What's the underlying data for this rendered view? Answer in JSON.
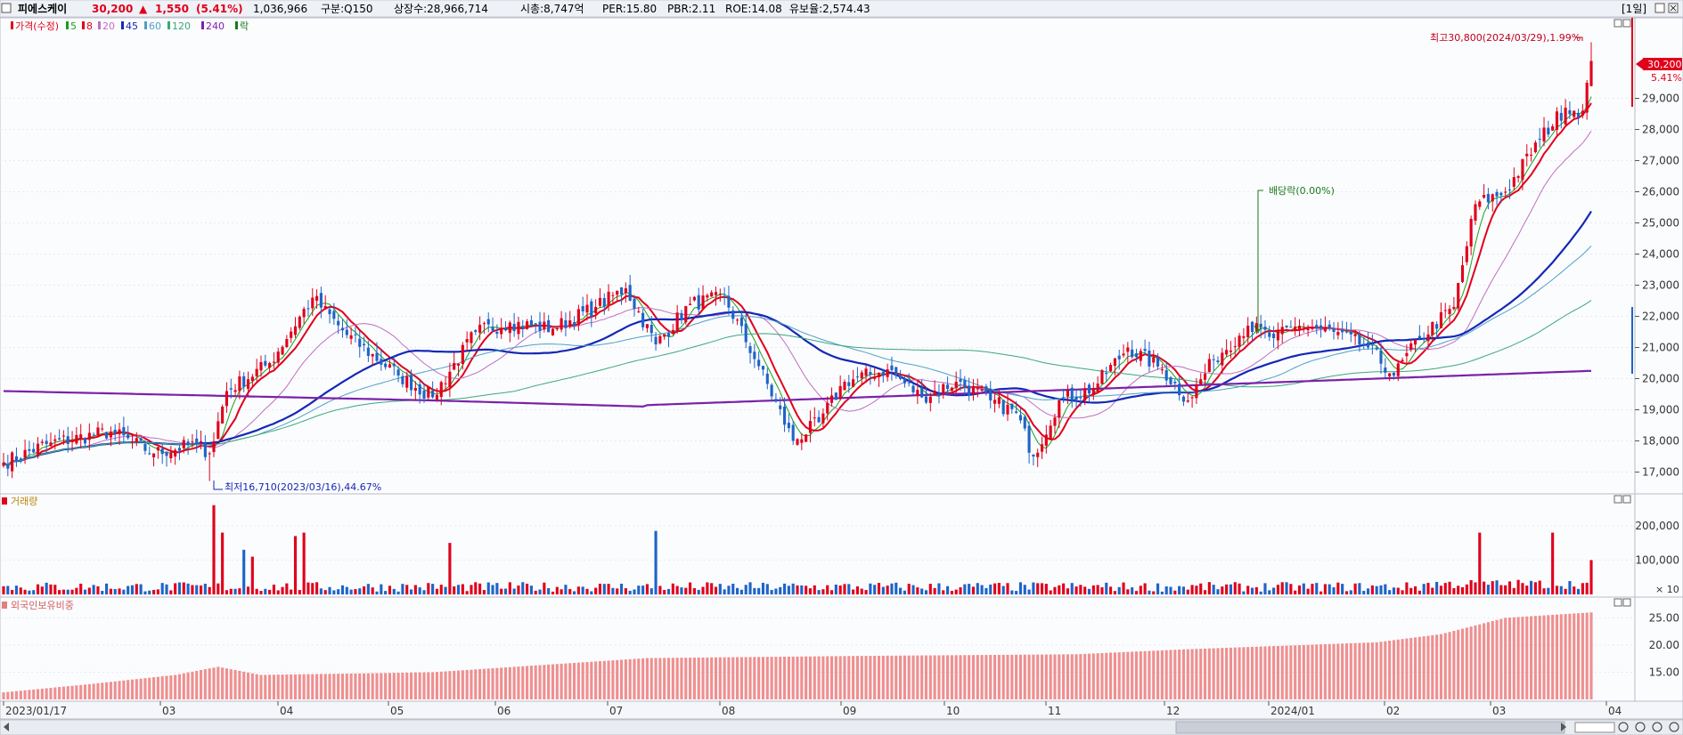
{
  "header": {
    "stock_name": "피에스케이",
    "price": "30,200",
    "change_arrow": "▲",
    "change": "1,550",
    "change_pct": "(5.41%)",
    "volume": "1,036,966",
    "market": "구분:Q150",
    "listed_shares": "상장수:28,966,714",
    "market_cap": "시총:8,747억",
    "per": "PER:15.80",
    "pbr": "PBR:2.11",
    "roe": "ROE:14.08",
    "float": "유보율:2,574.43",
    "period_button": "[1일]",
    "colors": {
      "up": "#e0001b",
      "down": "#1e64c8",
      "name": "#000000"
    }
  },
  "price_pane": {
    "legend": [
      {
        "label": "가격(수정)",
        "color": "#e0001b"
      },
      {
        "label": "5",
        "color": "#1aa01a"
      },
      {
        "label": "8",
        "color": "#e0001b"
      },
      {
        "label": "20",
        "color": "#c06fc0"
      },
      {
        "label": "45",
        "color": "#1428b4"
      },
      {
        "label": "60",
        "color": "#4da0c8"
      },
      {
        "label": "120",
        "color": "#3ca878"
      },
      {
        "label": "240",
        "color": "#7a22a8"
      },
      {
        "label": "락",
        "color": "#1a7a1a"
      }
    ],
    "high_annotation": "최고30,800(2024/03/29),1.99%",
    "low_annotation": "최저16,710(2023/03/16),44.67%",
    "dividend_annotation": "배당락(0.00%)",
    "current_price_box": "30,200",
    "current_change_pct": "5.41%"
  },
  "volume_pane": {
    "title": "거래량",
    "scale_note": "× 10"
  },
  "foreign_pane": {
    "title": "외국인보유비중"
  },
  "x_axis_labels": [
    "2023/01/17",
    "03",
    "04",
    "05",
    "06",
    "07",
    "08",
    "09",
    "10",
    "11",
    "12",
    "2024/01",
    "02",
    "03",
    "04"
  ],
  "chart_data": [
    {
      "type": "candlestick",
      "title": "피에스케이",
      "y_ticks": [
        17000,
        18000,
        19000,
        20000,
        21000,
        22000,
        23000,
        24000,
        25000,
        26000,
        27000,
        28000,
        29000
      ],
      "ylim": [
        16500,
        31300
      ],
      "first_date": "2023/01/17",
      "last_date": "2024/03/29",
      "high": {
        "value": 30800,
        "date": "2024/03/29"
      },
      "low": {
        "value": 16710,
        "date": "2023/03/16"
      },
      "last_close": 30200,
      "close_anchors": [
        [
          0,
          17300
        ],
        [
          10,
          17900
        ],
        [
          25,
          18300
        ],
        [
          35,
          17600
        ],
        [
          45,
          17900
        ],
        [
          48,
          17600
        ],
        [
          52,
          19600
        ],
        [
          62,
          20500
        ],
        [
          72,
          22600
        ],
        [
          80,
          21400
        ],
        [
          92,
          20100
        ],
        [
          100,
          19400
        ],
        [
          110,
          21500
        ],
        [
          118,
          21800
        ],
        [
          128,
          21600
        ],
        [
          138,
          22300
        ],
        [
          145,
          22900
        ],
        [
          152,
          21100
        ],
        [
          160,
          22400
        ],
        [
          168,
          22600
        ],
        [
          176,
          20400
        ],
        [
          184,
          18000
        ],
        [
          190,
          18600
        ],
        [
          196,
          19900
        ],
        [
          206,
          20300
        ],
        [
          214,
          19400
        ],
        [
          222,
          19900
        ],
        [
          230,
          19300
        ],
        [
          236,
          18900
        ],
        [
          240,
          17500
        ],
        [
          246,
          19300
        ],
        [
          254,
          19700
        ],
        [
          262,
          21000
        ],
        [
          270,
          20300
        ],
        [
          276,
          19300
        ],
        [
          282,
          20600
        ],
        [
          290,
          21700
        ],
        [
          296,
          21300
        ],
        [
          302,
          21700
        ],
        [
          310,
          21500
        ],
        [
          318,
          21000
        ],
        [
          324,
          20100
        ],
        [
          330,
          21300
        ],
        [
          338,
          22300
        ],
        [
          343,
          25600
        ],
        [
          350,
          26000
        ],
        [
          358,
          27700
        ],
        [
          364,
          28700
        ],
        [
          368,
          28600
        ],
        [
          370,
          30200
        ]
      ],
      "volume_y_ticks": [
        100000,
        200000
      ],
      "volume_ylim": [
        0,
        280000
      ],
      "volume_spikes": [
        [
          49,
          260000
        ],
        [
          51,
          180000
        ],
        [
          56,
          130000
        ],
        [
          58,
          110000
        ],
        [
          68,
          170000
        ],
        [
          70,
          180000
        ],
        [
          104,
          150000
        ],
        [
          152,
          185000
        ],
        [
          344,
          180000
        ],
        [
          361,
          180000
        ],
        [
          370,
          100000
        ]
      ],
      "foreign_y_ticks": [
        15,
        20,
        25
      ],
      "foreign_ylim": [
        10,
        28
      ],
      "foreign_ratio_anchors": [
        [
          0,
          11.3
        ],
        [
          20,
          12.8
        ],
        [
          40,
          14.5
        ],
        [
          50,
          16.0
        ],
        [
          60,
          14.5
        ],
        [
          100,
          15.0
        ],
        [
          150,
          17.6
        ],
        [
          200,
          18.0
        ],
        [
          250,
          18.3
        ],
        [
          275,
          19.2
        ],
        [
          320,
          20.5
        ],
        [
          335,
          22.0
        ],
        [
          350,
          25.0
        ],
        [
          370,
          26.0
        ]
      ]
    }
  ]
}
